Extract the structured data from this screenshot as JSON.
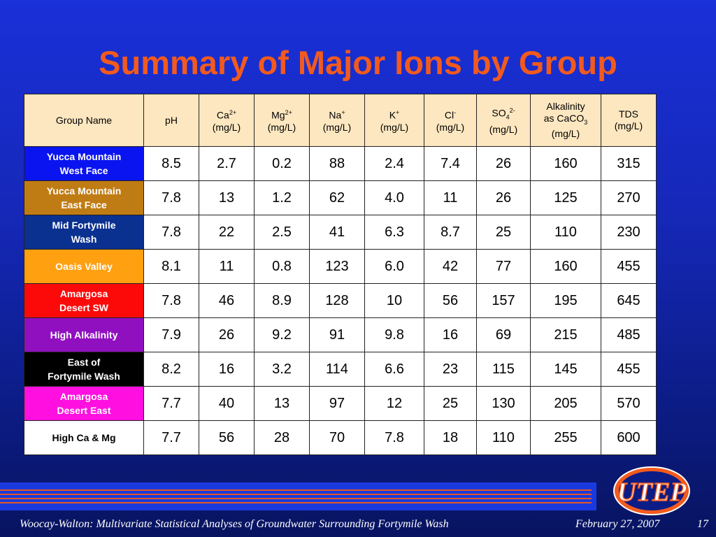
{
  "title": "Summary of Major Ions by Group",
  "headers": {
    "group": "Group Name",
    "ph": "pH",
    "ca": {
      "base": "Ca",
      "sup": "2+",
      "unit": "(mg/L)"
    },
    "mg": {
      "base": "Mg",
      "sup": "2+",
      "unit": "(mg/L)"
    },
    "na": {
      "base": "Na",
      "sup": "+",
      "unit": "(mg/L)"
    },
    "k": {
      "base": "K",
      "sup": "+",
      "unit": "(mg/L)"
    },
    "cl": {
      "base": "Cl",
      "sup": "-",
      "unit": "(mg/L)"
    },
    "so4": {
      "base": "SO",
      "sub": "4",
      "sup": "2-",
      "unit": "(mg/L)"
    },
    "alk": {
      "line1": "Alkalinity",
      "line2a": "as CaCO",
      "sub": "3",
      "unit": "(mg/L)"
    },
    "tds": {
      "base": "TDS",
      "unit": "(mg/L)"
    }
  },
  "rows": [
    {
      "group": [
        "Yucca Mountain",
        "West Face"
      ],
      "bg": "#0a14f0",
      "fg": "#ffffff",
      "values": [
        "8.5",
        "2.7",
        "0.2",
        "88",
        "2.4",
        "7.4",
        "26",
        "160",
        "315"
      ]
    },
    {
      "group": [
        "Yucca Mountain",
        "East Face"
      ],
      "bg": "#c07c14",
      "fg": "#ffffff",
      "values": [
        "7.8",
        "13",
        "1.2",
        "62",
        "4.0",
        "11",
        "26",
        "125",
        "270"
      ]
    },
    {
      "group": [
        "Mid Fortymile",
        "Wash"
      ],
      "bg": "#0a3090",
      "fg": "#ffffff",
      "values": [
        "7.8",
        "22",
        "2.5",
        "41",
        "6.3",
        "8.7",
        "25",
        "110",
        "230"
      ]
    },
    {
      "group": [
        "Oasis Valley"
      ],
      "bg": "#ffa010",
      "fg": "#ffffff",
      "values": [
        "8.1",
        "11",
        "0.8",
        "123",
        "6.0",
        "42",
        "77",
        "160",
        "455"
      ]
    },
    {
      "group": [
        "Amargosa",
        "Desert SW"
      ],
      "bg": "#fc0a0a",
      "fg": "#ffffff",
      "values": [
        "7.8",
        "46",
        "8.9",
        "128",
        "10",
        "56",
        "157",
        "195",
        "645"
      ]
    },
    {
      "group": [
        "High Alkalinity"
      ],
      "bg": "#9010c0",
      "fg": "#ffffff",
      "values": [
        "7.9",
        "26",
        "9.2",
        "91",
        "9.8",
        "16",
        "69",
        "215",
        "485"
      ]
    },
    {
      "group": [
        "East of",
        "Fortymile Wash"
      ],
      "bg": "#000000",
      "fg": "#ffffff",
      "values": [
        "8.2",
        "16",
        "3.2",
        "114",
        "6.6",
        "23",
        "115",
        "145",
        "455"
      ]
    },
    {
      "group": [
        "Amargosa",
        "Desert East"
      ],
      "bg": "#ff10e0",
      "fg": "#ffffff",
      "values": [
        "7.7",
        "40",
        "13",
        "97",
        "12",
        "25",
        "130",
        "205",
        "570"
      ]
    },
    {
      "group": [
        "High Ca & Mg"
      ],
      "bg": "#ffffff",
      "fg": "#000000",
      "values": [
        "7.7",
        "56",
        "28",
        "70",
        "7.8",
        "18",
        "110",
        "255",
        "600"
      ]
    }
  ],
  "footer": {
    "citation": "Woocay-Walton: Multivariate Statistical Analyses of Groundwater Surrounding Fortymile Wash",
    "date": "February 27, 2007",
    "page": "17"
  },
  "logo_text": "UTEP",
  "colors": {
    "title": "#f25a1e",
    "header_bg": "#fde7c0",
    "stripe": "#e8561e",
    "background": "#1528b8"
  }
}
